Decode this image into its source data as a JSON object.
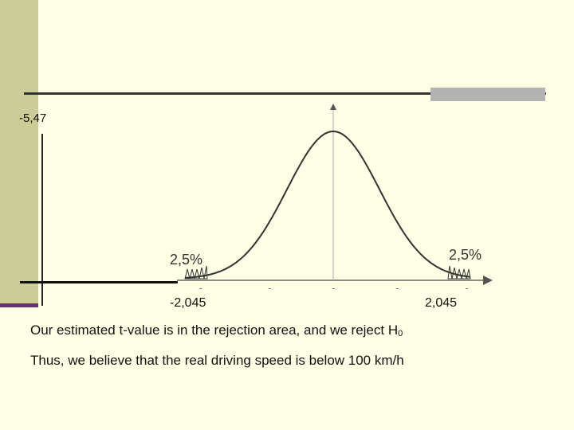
{
  "labels": {
    "top_value": "-5,47",
    "critical_left": "-2,045",
    "critical_right": "2,045",
    "tail_left": "2,5%",
    "tail_right": "2,5%"
  },
  "conclusion": {
    "line1": "Our estimated t-value is in the rejection area, and we reject H",
    "line1_sub": "0",
    "line2": "Thus, we believe that the real driving speed is below 100 km/h"
  },
  "colors": {
    "background": "#ffffe6",
    "side_bar": "#cccc99",
    "accent": "#663366"
  }
}
